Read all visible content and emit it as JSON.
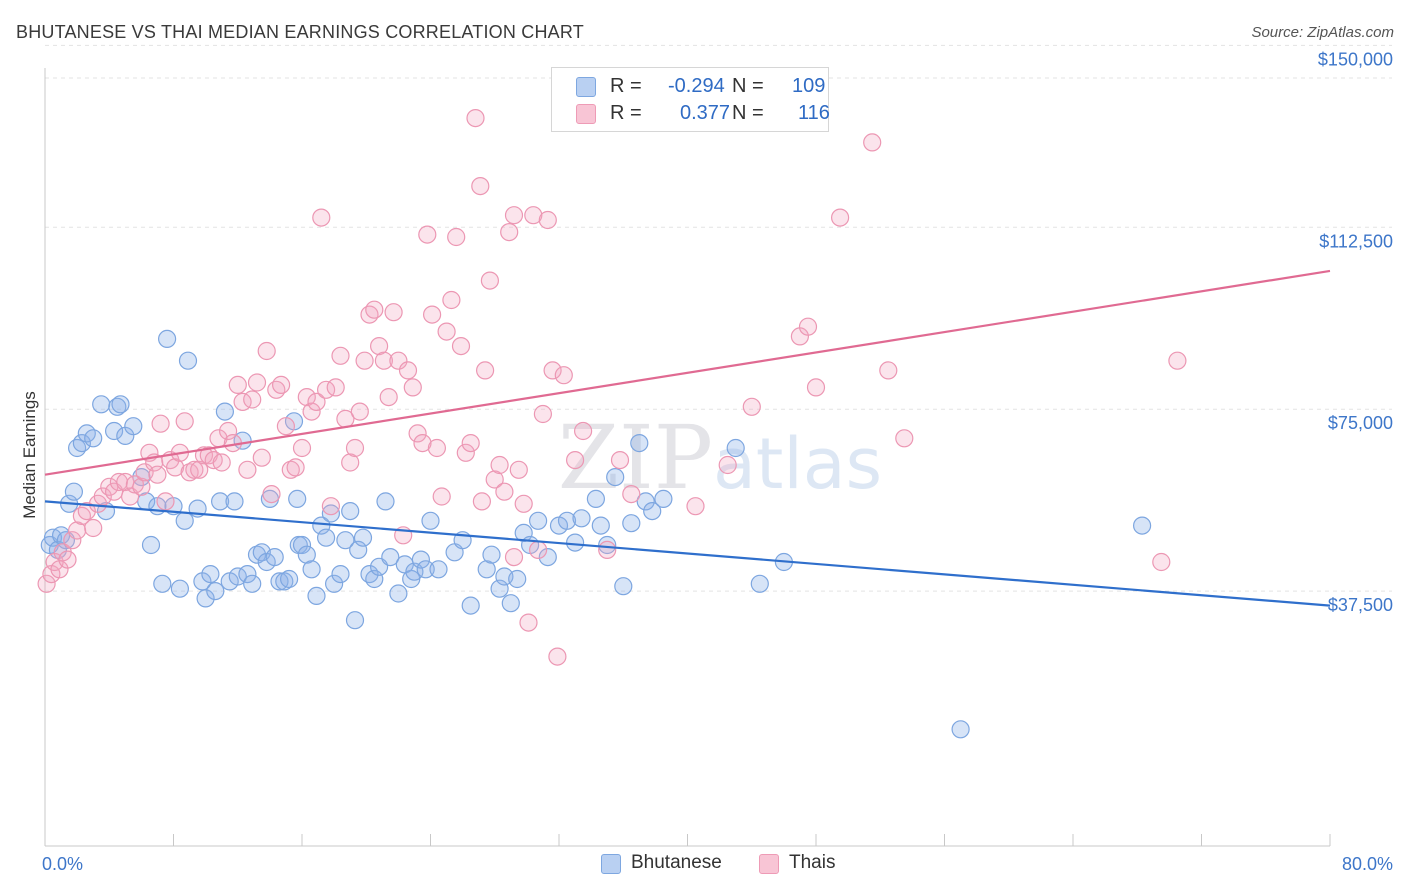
{
  "title": "BHUTANESE VS THAI MEDIAN EARNINGS CORRELATION CHART",
  "source": "Source: ZipAtlas.com",
  "watermark": "ZIPatlas",
  "legend": {
    "rows": [
      {
        "r_label": "R =",
        "r_value": "-0.294",
        "n_label": "N =",
        "n_value": "109"
      },
      {
        "r_label": "R =",
        "r_value": "0.377",
        "n_label": "N =",
        "n_value": "116"
      }
    ]
  },
  "chart_data": {
    "type": "scatter",
    "title": "BHUTANESE VS THAI MEDIAN EARNINGS CORRELATION CHART",
    "xlabel": "",
    "ylabel": "Median Earnings",
    "xlim": [
      0,
      80
    ],
    "ylim": [
      0,
      157500
    ],
    "x_tick_labels": [
      "0.0%",
      "80.0%"
    ],
    "y_ticks": [
      37500,
      75000,
      112500,
      150000
    ],
    "y_tick_labels": [
      "$37,500",
      "$75,000",
      "$112,500",
      "$150,000"
    ],
    "grid": true,
    "legend_position": "bottom-center",
    "colors": {
      "Bhutanese": "#8db3e8",
      "Thais": "#f2a7bf",
      "Bhutanese_line": "#2f6fcc",
      "Thais_line": "#e06a92",
      "label": "#3d76c9"
    },
    "series": [
      {
        "name": "Bhutanese",
        "r": -0.294,
        "n": 109,
        "trend": {
          "x": [
            0,
            80
          ],
          "y": [
            56000,
            34500
          ]
        },
        "points": [
          [
            0.3,
            47000
          ],
          [
            0.5,
            48500
          ],
          [
            0.8,
            46000
          ],
          [
            1,
            49000
          ],
          [
            1.3,
            48000
          ],
          [
            1.5,
            55500
          ],
          [
            1.8,
            58000
          ],
          [
            2,
            67000
          ],
          [
            2.3,
            68000
          ],
          [
            2.6,
            70000
          ],
          [
            3,
            69000
          ],
          [
            3.5,
            76000
          ],
          [
            3.8,
            54000
          ],
          [
            4.5,
            75500
          ],
          [
            4.7,
            76000
          ],
          [
            4.3,
            70500
          ],
          [
            5,
            69500
          ],
          [
            5.5,
            71500
          ],
          [
            6,
            61000
          ],
          [
            6.3,
            56000
          ],
          [
            6.6,
            47000
          ],
          [
            7,
            55000
          ],
          [
            7.3,
            39000
          ],
          [
            7.6,
            89500
          ],
          [
            8,
            55000
          ],
          [
            8.4,
            38000
          ],
          [
            8.7,
            52000
          ],
          [
            8.9,
            85000
          ],
          [
            9.5,
            54500
          ],
          [
            9.8,
            39500
          ],
          [
            10,
            36000
          ],
          [
            10.3,
            41000
          ],
          [
            10.6,
            37500
          ],
          [
            10.9,
            56000
          ],
          [
            11.2,
            74500
          ],
          [
            11.5,
            39500
          ],
          [
            11.8,
            56000
          ],
          [
            12,
            40500
          ],
          [
            12.3,
            68500
          ],
          [
            12.6,
            41000
          ],
          [
            12.9,
            39000
          ],
          [
            13.2,
            45000
          ],
          [
            13.5,
            45500
          ],
          [
            13.8,
            43500
          ],
          [
            14,
            56500
          ],
          [
            14.3,
            44500
          ],
          [
            14.6,
            39500
          ],
          [
            14.9,
            39500
          ],
          [
            15.2,
            40000
          ],
          [
            15.5,
            72500
          ],
          [
            15.7,
            56500
          ],
          [
            15.8,
            47000
          ],
          [
            16,
            47000
          ],
          [
            16.3,
            45000
          ],
          [
            16.6,
            42000
          ],
          [
            16.9,
            36500
          ],
          [
            17.2,
            51000
          ],
          [
            17.5,
            48500
          ],
          [
            17.8,
            53500
          ],
          [
            18,
            39000
          ],
          [
            18.4,
            41000
          ],
          [
            18.7,
            48000
          ],
          [
            19,
            54000
          ],
          [
            19.3,
            31500
          ],
          [
            19.5,
            46000
          ],
          [
            19.8,
            48500
          ],
          [
            20.2,
            41000
          ],
          [
            20.5,
            40000
          ],
          [
            20.8,
            42500
          ],
          [
            21.2,
            56000
          ],
          [
            21.5,
            44500
          ],
          [
            22,
            37000
          ],
          [
            22.4,
            43000
          ],
          [
            22.8,
            40000
          ],
          [
            23,
            41500
          ],
          [
            23.4,
            44000
          ],
          [
            23.7,
            42000
          ],
          [
            24,
            52000
          ],
          [
            24.5,
            42000
          ],
          [
            25.5,
            45500
          ],
          [
            26,
            48000
          ],
          [
            26.5,
            34500
          ],
          [
            27.5,
            42000
          ],
          [
            27.8,
            45000
          ],
          [
            28.3,
            38000
          ],
          [
            28.6,
            40500
          ],
          [
            29,
            35000
          ],
          [
            29.4,
            40000
          ],
          [
            29.8,
            49500
          ],
          [
            30.2,
            47000
          ],
          [
            30.7,
            52000
          ],
          [
            31.3,
            44500
          ],
          [
            32,
            51000
          ],
          [
            32.5,
            52000
          ],
          [
            33,
            47500
          ],
          [
            33.4,
            52500
          ],
          [
            34.3,
            56500
          ],
          [
            34.6,
            51000
          ],
          [
            35,
            47000
          ],
          [
            35.5,
            61000
          ],
          [
            36,
            38500
          ],
          [
            36.5,
            51500
          ],
          [
            37,
            68000
          ],
          [
            37.4,
            56000
          ],
          [
            37.8,
            54000
          ],
          [
            38.5,
            56500
          ],
          [
            43,
            67000
          ],
          [
            46,
            43500
          ],
          [
            57,
            9000
          ],
          [
            68.3,
            51000
          ],
          [
            44.5,
            39000
          ]
        ]
      },
      {
        "name": "Thais",
        "r": 0.377,
        "n": 116,
        "trend": {
          "x": [
            0,
            80
          ],
          "y": [
            61500,
            103500
          ]
        },
        "points": [
          [
            0.1,
            39000
          ],
          [
            0.4,
            41000
          ],
          [
            0.6,
            43500
          ],
          [
            0.9,
            42000
          ],
          [
            1.1,
            45500
          ],
          [
            1.4,
            44000
          ],
          [
            1.7,
            48000
          ],
          [
            2,
            50000
          ],
          [
            2.3,
            53000
          ],
          [
            2.6,
            54000
          ],
          [
            3,
            50500
          ],
          [
            3.3,
            55500
          ],
          [
            3.6,
            57000
          ],
          [
            4,
            59000
          ],
          [
            4.3,
            58000
          ],
          [
            4.6,
            60000
          ],
          [
            5,
            60000
          ],
          [
            5.3,
            57000
          ],
          [
            5.6,
            59500
          ],
          [
            6,
            59000
          ],
          [
            6.2,
            62000
          ],
          [
            6.5,
            66000
          ],
          [
            6.8,
            64000
          ],
          [
            7,
            61500
          ],
          [
            7.2,
            72000
          ],
          [
            7.5,
            56000
          ],
          [
            7.8,
            64500
          ],
          [
            8.1,
            63000
          ],
          [
            8.4,
            66000
          ],
          [
            8.7,
            72500
          ],
          [
            9,
            62000
          ],
          [
            9.3,
            62500
          ],
          [
            9.6,
            62500
          ],
          [
            9.9,
            65500
          ],
          [
            10.2,
            65500
          ],
          [
            10.5,
            64500
          ],
          [
            10.8,
            69000
          ],
          [
            11,
            64000
          ],
          [
            11.4,
            70500
          ],
          [
            11.7,
            68000
          ],
          [
            12,
            80000
          ],
          [
            12.3,
            76500
          ],
          [
            12.6,
            62500
          ],
          [
            12.9,
            77000
          ],
          [
            13.2,
            80500
          ],
          [
            13.5,
            65000
          ],
          [
            13.8,
            87000
          ],
          [
            14.1,
            57500
          ],
          [
            14.4,
            79000
          ],
          [
            14.7,
            80000
          ],
          [
            15,
            71500
          ],
          [
            15.3,
            62500
          ],
          [
            15.6,
            63000
          ],
          [
            16,
            67000
          ],
          [
            16.3,
            77500
          ],
          [
            16.6,
            74500
          ],
          [
            16.9,
            76500
          ],
          [
            17.2,
            114500
          ],
          [
            17.5,
            79000
          ],
          [
            17.8,
            55000
          ],
          [
            18.1,
            79500
          ],
          [
            18.4,
            86000
          ],
          [
            18.7,
            73000
          ],
          [
            19,
            64000
          ],
          [
            19.3,
            67000
          ],
          [
            19.6,
            74500
          ],
          [
            19.9,
            85000
          ],
          [
            20.2,
            94500
          ],
          [
            20.5,
            95500
          ],
          [
            20.8,
            88000
          ],
          [
            21.1,
            85000
          ],
          [
            21.4,
            77500
          ],
          [
            21.7,
            95000
          ],
          [
            22,
            85000
          ],
          [
            22.3,
            49000
          ],
          [
            22.6,
            83000
          ],
          [
            22.9,
            79500
          ],
          [
            23.2,
            70000
          ],
          [
            23.5,
            68000
          ],
          [
            23.8,
            111000
          ],
          [
            24.1,
            94500
          ],
          [
            24.4,
            67000
          ],
          [
            24.7,
            57000
          ],
          [
            25,
            91000
          ],
          [
            25.3,
            97500
          ],
          [
            25.6,
            110500
          ],
          [
            25.9,
            88000
          ],
          [
            26.2,
            66000
          ],
          [
            26.5,
            68000
          ],
          [
            26.8,
            135000
          ],
          [
            27.1,
            121000
          ],
          [
            27.4,
            83000
          ],
          [
            27.7,
            101500
          ],
          [
            28,
            60500
          ],
          [
            28.3,
            63500
          ],
          [
            28.6,
            58000
          ],
          [
            28.9,
            111500
          ],
          [
            29.2,
            115000
          ],
          [
            29.5,
            62500
          ],
          [
            29.8,
            55500
          ],
          [
            30.1,
            31000
          ],
          [
            30.4,
            115000
          ],
          [
            30.7,
            46000
          ],
          [
            31,
            74000
          ],
          [
            31.3,
            114000
          ],
          [
            31.6,
            83000
          ],
          [
            31.9,
            24000
          ],
          [
            32.3,
            82000
          ],
          [
            33,
            64500
          ],
          [
            33.5,
            70500
          ],
          [
            40.5,
            55000
          ],
          [
            42.5,
            63500
          ],
          [
            44,
            75500
          ],
          [
            47,
            90000
          ],
          [
            47.5,
            92000
          ],
          [
            48,
            79500
          ],
          [
            49.5,
            114500
          ],
          [
            51.5,
            130000
          ],
          [
            53.5,
            69000
          ],
          [
            52.5,
            83000
          ],
          [
            69.5,
            43500
          ],
          [
            70.5,
            85000
          ],
          [
            29.2,
            44500
          ],
          [
            27.2,
            56000
          ],
          [
            35,
            46000
          ],
          [
            36.5,
            57500
          ],
          [
            35.8,
            64500
          ]
        ]
      }
    ]
  }
}
